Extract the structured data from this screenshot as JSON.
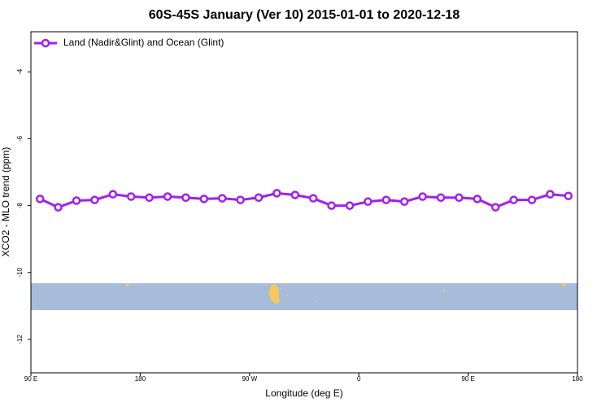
{
  "chart_data": {
    "type": "line",
    "title": "60S-45S January (Ver 10)   2015-01-01 to 2020-12-18",
    "xlabel": "Longitude (deg E)",
    "ylabel": "XCO2 - MLO trend (ppm)",
    "x": [
      97.5,
      112.5,
      127.5,
      142.5,
      157.5,
      172.5,
      187.5,
      202.5,
      217.5,
      232.5,
      247.5,
      262.5,
      277.5,
      292.5,
      307.5,
      322.5,
      337.5,
      352.5,
      367.5,
      382.5,
      397.5,
      412.5,
      427.5,
      442.5,
      457.5,
      472.5,
      487.5,
      502.5,
      517.5,
      532.5
    ],
    "series": [
      {
        "name": "Land (Nadir&Glint) and Ocean (Glint)",
        "color": "#a020f0",
        "values": [
          -7.8,
          -8.05,
          -7.85,
          -7.83,
          -7.66,
          -7.73,
          -7.76,
          -7.73,
          -7.76,
          -7.8,
          -7.78,
          -7.83,
          -7.76,
          -7.63,
          -7.68,
          -7.78,
          -8.0,
          -8.0,
          -7.88,
          -7.83,
          -7.88,
          -7.73,
          -7.76,
          -7.76,
          -7.8,
          -8.05,
          -7.83,
          -7.83,
          -7.66,
          -7.71
        ]
      }
    ],
    "xlim": [
      90,
      540
    ],
    "xticks": [
      {
        "value": 90,
        "label": "90 E"
      },
      180,
      {
        "value": 270,
        "label": "90 W"
      },
      {
        "value": 360,
        "label": "0"
      },
      {
        "value": 450,
        "label": "90 E"
      },
      {
        "value": 540,
        "label": "180"
      }
    ],
    "ylim": [
      -13,
      -2.8
    ],
    "yticks": [
      -12,
      -10,
      -8,
      -6,
      -4
    ],
    "legend": "top-left"
  }
}
